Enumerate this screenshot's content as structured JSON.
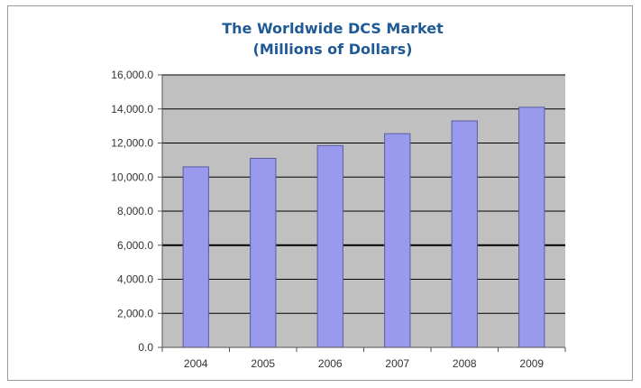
{
  "chart_data": {
    "type": "bar",
    "title": "The Worldwide DCS Market",
    "subtitle": "(Millions of Dollars)",
    "categories": [
      "2004",
      "2005",
      "2006",
      "2007",
      "2008",
      "2009"
    ],
    "values": [
      10600,
      11100,
      11850,
      12550,
      13300,
      14100
    ],
    "ylim": [
      0,
      16000
    ],
    "yticks": [
      0,
      2000,
      4000,
      6000,
      8000,
      10000,
      12000,
      14000,
      16000
    ],
    "ytick_labels": [
      "0.0",
      "2,000.0",
      "4,000.0",
      "6,000.0",
      "8,000.0",
      "10,000.0",
      "12,000.0",
      "14,000.0",
      "16,000.0"
    ],
    "grid": true,
    "legend": "none",
    "colors": {
      "bar_fill": "#9999ee",
      "bar_stroke": "#5c5ca0",
      "plot_background": "#c0c0c0",
      "title": "#1f5a96",
      "gridline": "#000000"
    }
  }
}
